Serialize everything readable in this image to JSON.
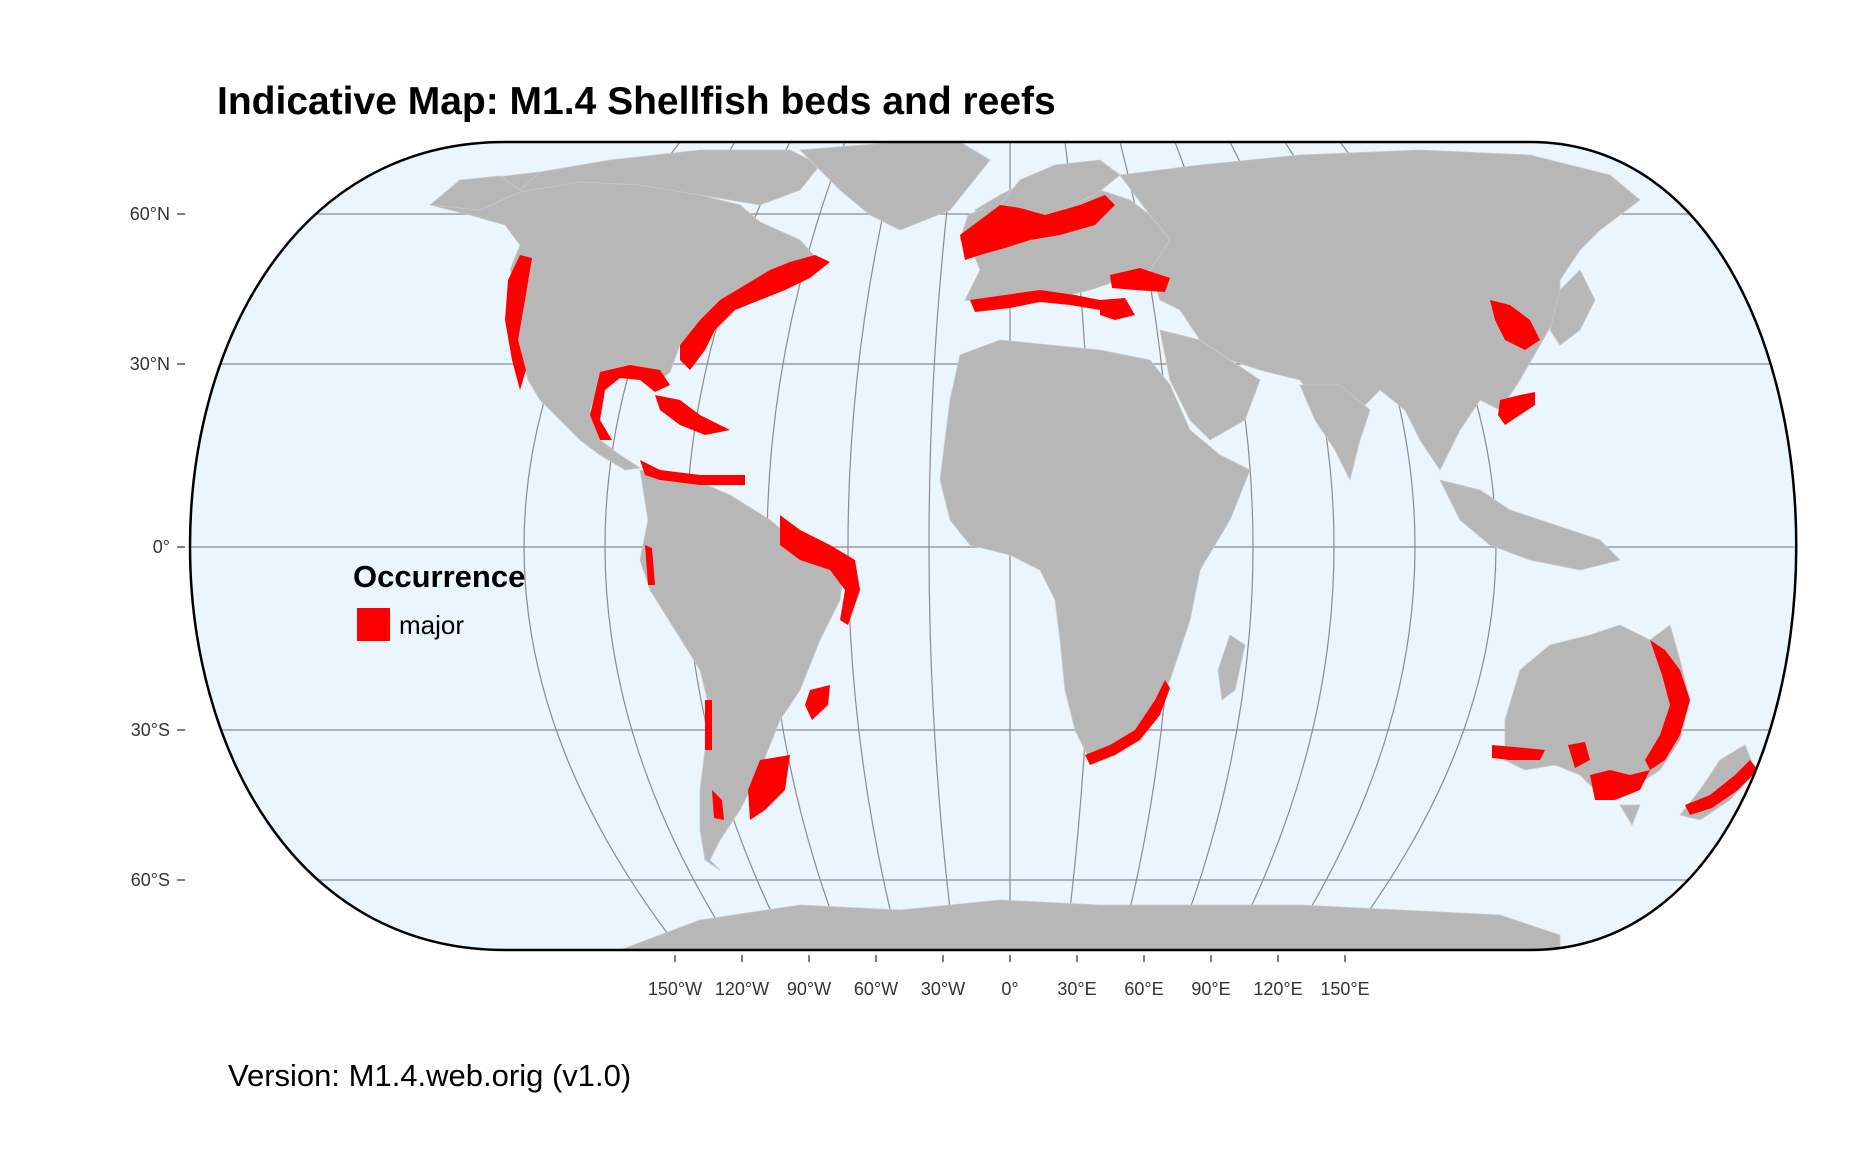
{
  "title": "Indicative Map: M1.4 Shellfish beds and reefs",
  "version": "Version: M1.4.web.orig (v1.0)",
  "legend": {
    "title": "Occurrence",
    "items": [
      {
        "label": "major",
        "color": "#ff0000"
      }
    ]
  },
  "latitude_labels": [
    "60°N",
    "30°N",
    "0°",
    "30°S",
    "60°S"
  ],
  "longitude_labels": [
    "150°W",
    "120°W",
    "90°W",
    "60°W",
    "30°W",
    "0°",
    "30°E",
    "60°E",
    "90°E",
    "120°E",
    "150°E"
  ],
  "colors": {
    "ocean": "#eaf5fd",
    "land": "#b7b7b7",
    "occurrence": "#ff0000",
    "graticule": "#8c8c8c",
    "frame": "#000000"
  }
}
